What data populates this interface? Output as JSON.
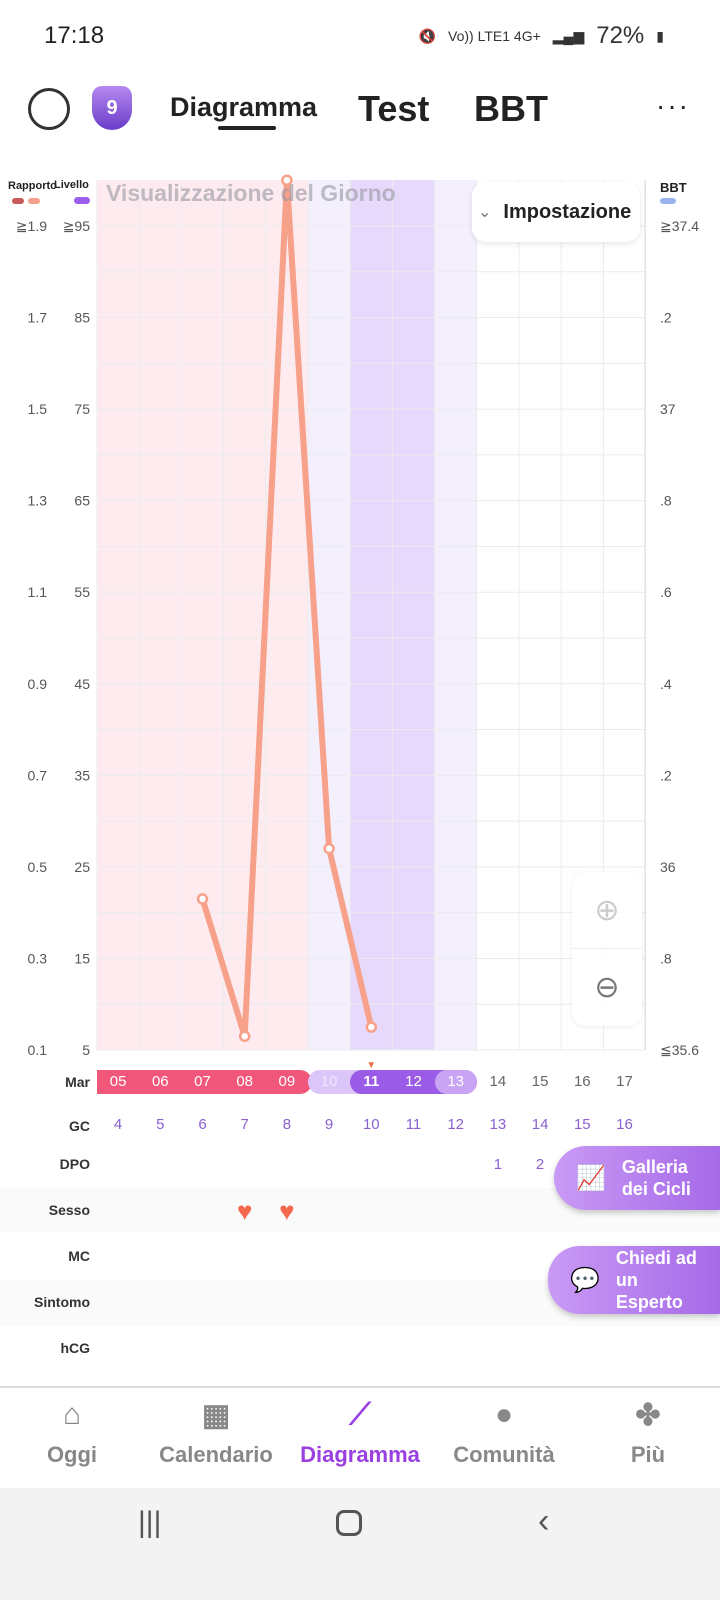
{
  "status": {
    "time": "17:18",
    "network": "Vo)) LTE1 4G+",
    "battery": "72%"
  },
  "header": {
    "level_badge": "9",
    "tabs": [
      "Diagramma",
      "Test",
      "BBT"
    ],
    "more": "···"
  },
  "chart": {
    "legend_ratio": "Rapporto",
    "legend_level": "Livello",
    "title": "Visualizzazione del Giorno",
    "settings": "Impostazione",
    "bbt_label": "BBT",
    "ratio_ticks": [
      "≧1.9",
      "1.7",
      "1.5",
      "1.3",
      "1.1",
      "0.9",
      "0.7",
      "0.5",
      "0.3",
      "0.1"
    ],
    "level_ticks": [
      "≧95",
      "85",
      "75",
      "65",
      "55",
      "45",
      "35",
      "25",
      "15",
      "5"
    ],
    "bbt_ticks": [
      "≧37.4",
      ".2",
      "37",
      ".8",
      ".6",
      ".4",
      ".2",
      "36",
      ".8",
      "≦35.6"
    ],
    "colors": {
      "line": "#f7a08a",
      "period": "#fdebef",
      "fertile_light": "#f4effd",
      "fertile": "#e7d9fb"
    }
  },
  "chart_data": {
    "type": "line",
    "month": "Mar",
    "x": [
      "05",
      "06",
      "07",
      "08",
      "09",
      "10",
      "11",
      "12",
      "13",
      "14",
      "15",
      "16",
      "17"
    ],
    "series": [
      {
        "name": "Rapporto",
        "points": [
          {
            "x": "07",
            "y": 0.43
          },
          {
            "x": "08",
            "y": 0.13
          },
          {
            "x": "09",
            "y": 2.0
          },
          {
            "x": "10",
            "y": 0.54
          },
          {
            "x": "11",
            "y": 0.15
          }
        ]
      }
    ],
    "ylim": [
      0.1,
      1.9
    ],
    "today": "11"
  },
  "rows": {
    "month": "Mar",
    "gc_label": "GC",
    "gc": [
      "4",
      "5",
      "6",
      "7",
      "8",
      "9",
      "10",
      "11",
      "12",
      "13",
      "14",
      "15",
      "16"
    ],
    "dpo_label": "DPO",
    "dpo": [
      "",
      "",
      "",
      "",
      "",
      "",
      "",
      "",
      "",
      "1",
      "2",
      "",
      ""
    ],
    "sesso_label": "Sesso",
    "sesso_days": [
      "08",
      "09"
    ],
    "mc_label": "MC",
    "sintomo_label": "Sintomo",
    "hcg_label": "hCG"
  },
  "fabs": {
    "gallery": "Galleria dei Cicli",
    "expert": "Chiedi ad un Esperto"
  },
  "nav": [
    {
      "label": "Oggi",
      "icon": "⌂"
    },
    {
      "label": "Calendario",
      "icon": "▦"
    },
    {
      "label": "Diagramma",
      "icon": "⟋"
    },
    {
      "label": "Comunità",
      "icon": "●"
    },
    {
      "label": "Più",
      "icon": "✤"
    }
  ]
}
